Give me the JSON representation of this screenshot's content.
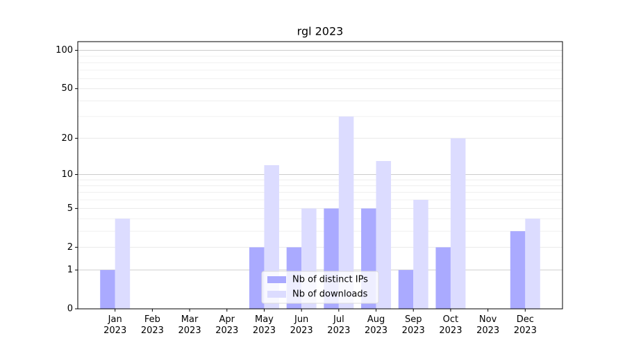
{
  "chart_data": {
    "type": "bar",
    "title": "rgl 2023",
    "categories": [
      "Jan\n2023",
      "Feb\n2023",
      "Mar\n2023",
      "Apr\n2023",
      "May\n2023",
      "Jun\n2023",
      "Jul\n2023",
      "Aug\n2023",
      "Sep\n2023",
      "Oct\n2023",
      "Nov\n2023",
      "Dec\n2023"
    ],
    "series": [
      {
        "name": "Nb of distinct IPs",
        "color": "#aaaaff",
        "values": [
          1,
          0,
          0,
          0,
          2,
          2,
          5,
          5,
          1,
          2,
          0,
          3
        ]
      },
      {
        "name": "Nb of downloads",
        "color": "#dcdcff",
        "values": [
          4,
          0,
          0,
          0,
          12,
          5,
          30,
          13,
          6,
          20,
          0,
          4
        ]
      }
    ],
    "yscale": "log1p",
    "ylim": [
      0,
      117
    ],
    "yticks": [
      0,
      1,
      2,
      5,
      10,
      20,
      50,
      100
    ],
    "grid": true,
    "legend": "lower center"
  }
}
